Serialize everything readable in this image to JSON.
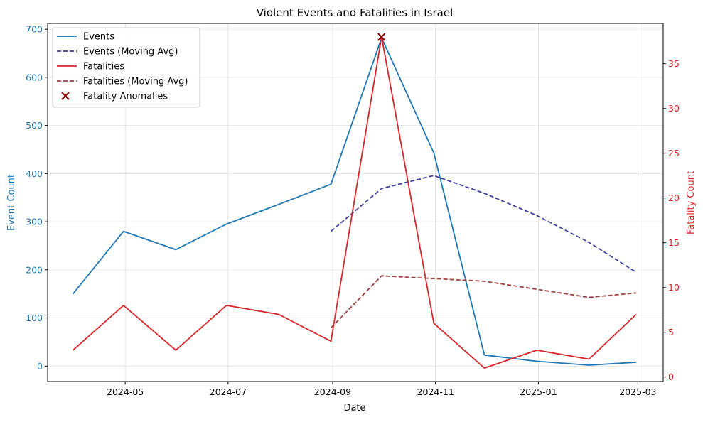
{
  "chart_data": {
    "type": "line",
    "title": "Violent Events and Fatalities in Israel",
    "xlabel": "Date",
    "ylabel_left": "Event Count",
    "ylabel_right": "Fatality Count",
    "x": [
      "2024-03-31",
      "2024-04-30",
      "2024-05-31",
      "2024-06-30",
      "2024-07-31",
      "2024-08-31",
      "2024-09-30",
      "2024-10-31",
      "2024-11-30",
      "2024-12-31",
      "2025-01-31",
      "2025-02-28"
    ],
    "x_ticks": [
      "2024-05",
      "2024-07",
      "2024-09",
      "2024-11",
      "2025-01",
      "2025-03"
    ],
    "x_tick_dates": [
      "2024-05-01",
      "2024-07-01",
      "2024-09-01",
      "2024-11-01",
      "2025-01-01",
      "2025-03-01"
    ],
    "xlim": [
      "2024-03-16",
      "2025-03-16"
    ],
    "ylim_left": [
      -32,
      712
    ],
    "ylim_right": [
      -0.5,
      39.5
    ],
    "yticks_left": [
      0,
      100,
      200,
      300,
      400,
      500,
      600,
      700
    ],
    "yticks_right": [
      0,
      5,
      10,
      15,
      20,
      25,
      30,
      35
    ],
    "grid": true,
    "legend_position": "upper-left",
    "series": [
      {
        "name": "Events",
        "axis": "left",
        "style": "solid",
        "color": "#1f77b4",
        "values": [
          150,
          280,
          242,
          295,
          336,
          378,
          682,
          443,
          23,
          10,
          2,
          8
        ]
      },
      {
        "name": "Events (Moving Avg)",
        "axis": "left",
        "style": "dashed",
        "color": "#4040a0",
        "values": [
          null,
          null,
          null,
          null,
          null,
          280,
          369,
          396,
          359,
          313,
          257,
          195
        ]
      },
      {
        "name": "Fatalities",
        "axis": "right",
        "style": "solid",
        "color": "#d62728",
        "values": [
          3,
          8,
          3,
          8,
          7,
          4,
          38,
          6,
          1,
          3,
          2,
          7
        ]
      },
      {
        "name": "Fatalities (Moving Avg)",
        "axis": "right",
        "style": "dashed",
        "color": "#a04040",
        "values": [
          null,
          null,
          null,
          null,
          null,
          5.5,
          11.3,
          11.0,
          10.7,
          9.8,
          8.9,
          9.4
        ]
      },
      {
        "name": "Fatality Anomalies",
        "axis": "right",
        "style": "marker-x",
        "color": "#8b0000",
        "points": [
          {
            "x": "2024-09-30",
            "y": 38
          }
        ]
      }
    ]
  }
}
